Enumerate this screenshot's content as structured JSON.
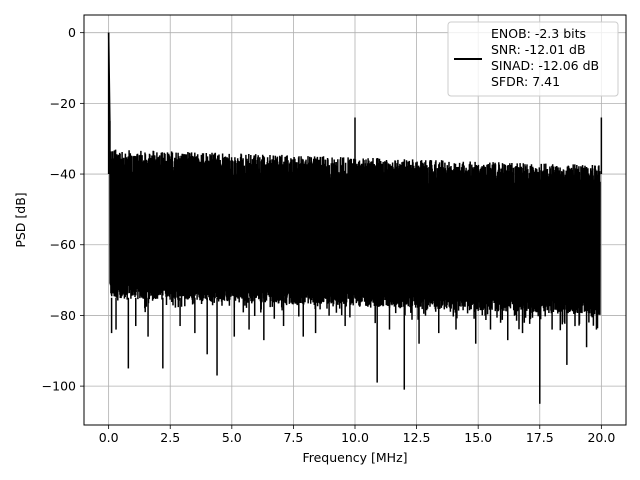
{
  "chart_data": {
    "type": "line",
    "title": "",
    "xlabel": "Frequency [MHz]",
    "ylabel": "PSD [dB]",
    "xlim": [
      -1.0,
      21.0
    ],
    "ylim": [
      -111.0,
      5.0
    ],
    "xticks": [
      0.0,
      2.5,
      5.0,
      7.5,
      10.0,
      12.5,
      15.0,
      17.5,
      20.0
    ],
    "xtick_labels": [
      "0.0",
      "2.5",
      "5.0",
      "7.5",
      "10.0",
      "12.5",
      "15.0",
      "17.5",
      "20.0"
    ],
    "yticks": [
      0,
      -20,
      -40,
      -60,
      -80,
      -100
    ],
    "ytick_labels": [
      "0",
      "−20",
      "−40",
      "−60",
      "−80",
      "−100"
    ],
    "grid": true,
    "legend_position": "top-right",
    "series_color": "#000000",
    "series": [
      {
        "name": "ENOB: -2.3 bits\nSNR: -12.01 dB\nSINAD: -12.06 dB\nSFDR: 7.41",
        "noise_band_top_start": -33,
        "noise_band_top_end": -37.5,
        "noise_band_bottom_start": -75,
        "noise_band_bottom_end": -80,
        "points": [
          [
            0.0,
            0.0
          ],
          [
            0.05,
            -25
          ],
          [
            0.08,
            -40
          ],
          [
            0.12,
            -85
          ],
          [
            0.3,
            -84
          ],
          [
            0.8,
            -95
          ],
          [
            1.1,
            -83
          ],
          [
            1.6,
            -86
          ],
          [
            2.2,
            -95
          ],
          [
            2.9,
            -83
          ],
          [
            3.5,
            -85
          ],
          [
            4.0,
            -91
          ],
          [
            4.4,
            -97
          ],
          [
            5.1,
            -86
          ],
          [
            5.7,
            -84
          ],
          [
            6.3,
            -87
          ],
          [
            7.1,
            -83
          ],
          [
            7.9,
            -86
          ],
          [
            8.4,
            -85
          ],
          [
            9.6,
            -83
          ],
          [
            10.0,
            -24
          ],
          [
            10.9,
            -99
          ],
          [
            11.4,
            -84
          ],
          [
            12.0,
            -101
          ],
          [
            12.6,
            -88
          ],
          [
            13.4,
            -85
          ],
          [
            14.1,
            -84
          ],
          [
            14.9,
            -88
          ],
          [
            15.5,
            -84
          ],
          [
            16.2,
            -87
          ],
          [
            16.8,
            -85
          ],
          [
            17.5,
            -105
          ],
          [
            18.0,
            -84
          ],
          [
            18.6,
            -94
          ],
          [
            19.4,
            -89
          ],
          [
            19.8,
            -84
          ],
          [
            20.0,
            -24
          ]
        ]
      }
    ],
    "legend_lines": [
      "ENOB: -2.3 bits",
      "SNR: -12.01 dB",
      "SINAD: -12.06 dB",
      "SFDR: 7.41"
    ]
  }
}
